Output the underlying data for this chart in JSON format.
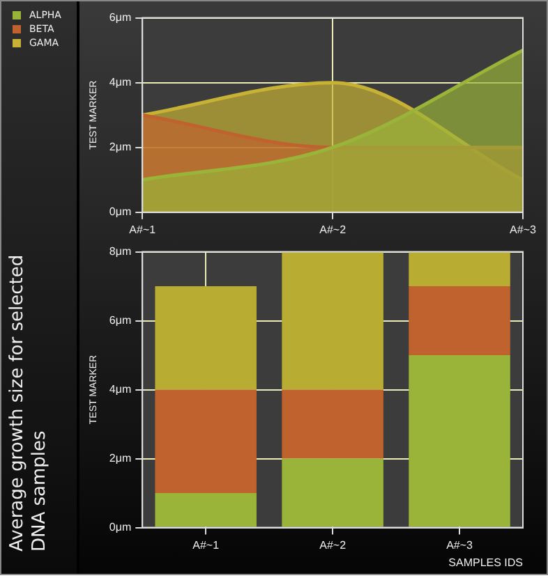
{
  "chart_data": [
    {
      "type": "area",
      "title": "Average growth size for selected DNA samples",
      "ylabel": "TEST MARKER",
      "categories": [
        "A#~1",
        "A#~2",
        "A#~3"
      ],
      "series": [
        {
          "name": "ALPHA",
          "color": "#9ab43a",
          "values": [
            1,
            2,
            5
          ]
        },
        {
          "name": "BETA",
          "color": "#c0622e",
          "values": [
            3,
            2,
            2
          ]
        },
        {
          "name": "GAMA",
          "color": "#c8b236",
          "values": [
            3,
            4,
            1
          ]
        }
      ],
      "ylim": [
        0,
        6
      ],
      "yticks": [
        {
          "value": 0,
          "label": "0μm"
        },
        {
          "value": 2,
          "label": "2μm"
        },
        {
          "value": 4,
          "label": "4μm"
        },
        {
          "value": 6,
          "label": "6μm"
        }
      ],
      "grid": true,
      "legend": "top left",
      "line_style": "solid",
      "marker": "none"
    },
    {
      "type": "bar",
      "stacked": true,
      "xlabel": "SAMPLES IDS",
      "ylabel": "TEST MARKER",
      "categories": [
        "A#~1",
        "A#~2",
        "A#~3"
      ],
      "series": [
        {
          "color": "#9ab43a",
          "values": [
            1,
            2,
            5
          ]
        },
        {
          "color": "#c0622e",
          "values": [
            3,
            2,
            2
          ]
        },
        {
          "color": "#b8ad32",
          "values": [
            3,
            4,
            1
          ]
        }
      ],
      "ylim": [
        0,
        8
      ],
      "yticks": [
        {
          "value": 0,
          "label": "0μm"
        },
        {
          "value": 2,
          "label": "2μm"
        },
        {
          "value": 4,
          "label": "4μm"
        },
        {
          "value": 6,
          "label": "6μm"
        },
        {
          "value": 8,
          "label": "8μm"
        }
      ],
      "grid": true
    }
  ]
}
